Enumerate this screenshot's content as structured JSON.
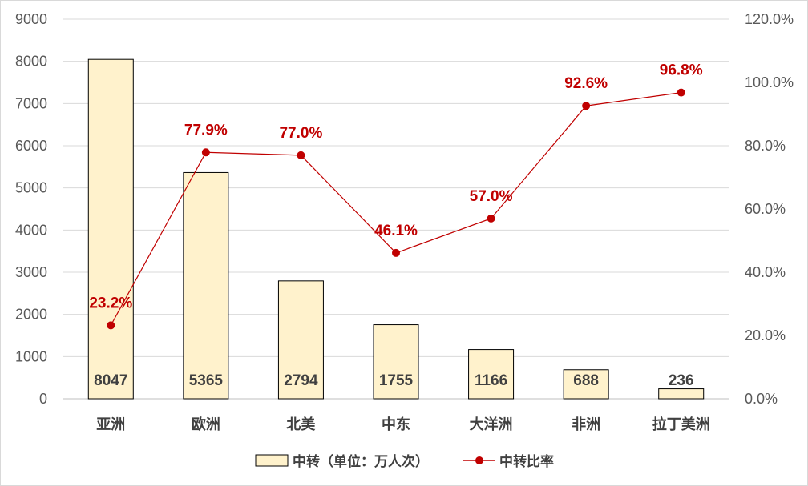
{
  "chart_data": {
    "type": "bar+line",
    "categories": [
      "亚洲",
      "欧洲",
      "北美",
      "中东",
      "大洋洲",
      "非洲",
      "拉丁美洲"
    ],
    "series": [
      {
        "name": "中转（单位：万人次）",
        "type": "bar",
        "axis": "left",
        "values": [
          8047,
          5365,
          2794,
          1755,
          1166,
          688,
          236
        ],
        "labels": [
          "8047",
          "5365",
          "2794",
          "1755",
          "1166",
          "688",
          "236"
        ]
      },
      {
        "name": "中转比率",
        "type": "line",
        "axis": "right",
        "values": [
          23.2,
          77.9,
          77.0,
          46.1,
          57.0,
          92.6,
          96.8
        ],
        "labels": [
          "23.2%",
          "77.9%",
          "77.0%",
          "46.1%",
          "57.0%",
          "92.6%",
          "96.8%"
        ]
      }
    ],
    "y_left": {
      "min": 0,
      "max": 9000,
      "step": 1000,
      "ticks": [
        "0",
        "1000",
        "2000",
        "3000",
        "4000",
        "5000",
        "6000",
        "7000",
        "8000",
        "9000"
      ]
    },
    "y_right": {
      "min": 0,
      "max": 120,
      "step": 20,
      "ticks": [
        "0.0%",
        "20.0%",
        "40.0%",
        "60.0%",
        "80.0%",
        "100.0%",
        "120.0%"
      ]
    },
    "grid": true,
    "legend": "bottom",
    "colors": {
      "bar_fill": "#fff2cc",
      "bar_stroke": "#000000",
      "line": "#c00000",
      "point_label": "#c00000",
      "grid": "#d9d9d9"
    }
  }
}
